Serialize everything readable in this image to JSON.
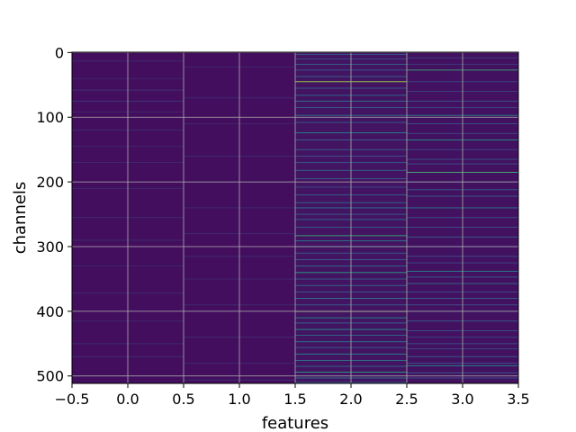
{
  "chart_data": {
    "type": "heatmap",
    "title": "",
    "xlabel": "features",
    "ylabel": "channels",
    "xlim": [
      -0.5,
      3.5
    ],
    "ylim": [
      511.5,
      -0.5
    ],
    "y_inverted": true,
    "n_columns": 4,
    "n_rows": 512,
    "colormap": "viridis",
    "grid": true,
    "grid_color": "#b0b0b0",
    "background_color": "#440154",
    "x_ticks": [
      -0.5,
      0.0,
      0.5,
      1.0,
      1.5,
      2.0,
      2.5,
      3.0,
      3.5
    ],
    "x_tick_labels": [
      "−0.5",
      "0.0",
      "0.5",
      "1.0",
      "1.5",
      "2.0",
      "2.5",
      "3.0",
      "3.5"
    ],
    "y_ticks": [
      0,
      100,
      200,
      300,
      400,
      500
    ],
    "y_tick_labels": [
      "0",
      "100",
      "200",
      "300",
      "400",
      "500"
    ],
    "columns": [
      {
        "feature": 0,
        "base_level": 0.04,
        "highlights": [
          [
            13,
            0.14
          ],
          [
            40,
            0.12
          ],
          [
            58,
            0.16
          ],
          [
            75,
            0.18
          ],
          [
            92,
            0.12
          ],
          [
            120,
            0.13
          ],
          [
            145,
            0.12
          ],
          [
            170,
            0.13
          ],
          [
            210,
            0.12
          ],
          [
            255,
            0.14
          ],
          [
            290,
            0.13
          ],
          [
            330,
            0.12
          ],
          [
            372,
            0.13
          ],
          [
            415,
            0.12
          ],
          [
            450,
            0.13
          ],
          [
            470,
            0.14
          ],
          [
            500,
            0.12
          ]
        ]
      },
      {
        "feature": 1,
        "base_level": 0.04,
        "highlights": [
          [
            22,
            0.12
          ],
          [
            70,
            0.14
          ],
          [
            110,
            0.12
          ],
          [
            160,
            0.13
          ],
          [
            200,
            0.12
          ],
          [
            240,
            0.13
          ],
          [
            280,
            0.14
          ],
          [
            315,
            0.13
          ],
          [
            350,
            0.12
          ],
          [
            390,
            0.13
          ],
          [
            440,
            0.14
          ],
          [
            480,
            0.13
          ],
          [
            506,
            0.14
          ]
        ]
      },
      {
        "feature": 2,
        "base_level": 0.06,
        "highlights": [
          [
            3,
            0.3
          ],
          [
            10,
            0.25
          ],
          [
            18,
            0.35
          ],
          [
            27,
            0.28
          ],
          [
            37,
            0.32
          ],
          [
            45,
            0.85
          ],
          [
            55,
            0.3
          ],
          [
            66,
            0.35
          ],
          [
            75,
            0.4
          ],
          [
            85,
            0.3
          ],
          [
            97,
            0.38
          ],
          [
            108,
            0.3
          ],
          [
            124,
            0.45
          ],
          [
            135,
            0.3
          ],
          [
            150,
            0.3
          ],
          [
            160,
            0.25
          ],
          [
            170,
            0.3
          ],
          [
            182,
            0.35
          ],
          [
            195,
            0.3
          ],
          [
            208,
            0.25
          ],
          [
            220,
            0.3
          ],
          [
            232,
            0.35
          ],
          [
            240,
            0.4
          ],
          [
            250,
            0.3
          ],
          [
            258,
            0.35
          ],
          [
            270,
            0.3
          ],
          [
            283,
            0.6
          ],
          [
            291,
            0.4
          ],
          [
            300,
            0.35
          ],
          [
            310,
            0.3
          ],
          [
            320,
            0.3
          ],
          [
            330,
            0.35
          ],
          [
            340,
            0.55
          ],
          [
            350,
            0.3
          ],
          [
            360,
            0.35
          ],
          [
            370,
            0.3
          ],
          [
            380,
            0.4
          ],
          [
            390,
            0.3
          ],
          [
            400,
            0.85
          ],
          [
            410,
            0.45
          ],
          [
            418,
            0.35
          ],
          [
            428,
            0.5
          ],
          [
            437,
            0.35
          ],
          [
            447,
            0.4
          ],
          [
            456,
            0.3
          ],
          [
            466,
            0.45
          ],
          [
            476,
            0.4
          ],
          [
            485,
            0.35
          ],
          [
            494,
            0.55
          ],
          [
            503,
            0.4
          ],
          [
            510,
            0.3
          ]
        ]
      },
      {
        "feature": 3,
        "base_level": 0.05,
        "highlights": [
          [
            8,
            0.2
          ],
          [
            18,
            0.18
          ],
          [
            27,
            0.6
          ],
          [
            45,
            0.22
          ],
          [
            60,
            0.2
          ],
          [
            75,
            0.25
          ],
          [
            85,
            0.22
          ],
          [
            97,
            0.45
          ],
          [
            110,
            0.25
          ],
          [
            125,
            0.22
          ],
          [
            135,
            0.5
          ],
          [
            150,
            0.22
          ],
          [
            165,
            0.25
          ],
          [
            172,
            0.25
          ],
          [
            185,
            0.65
          ],
          [
            200,
            0.25
          ],
          [
            212,
            0.3
          ],
          [
            222,
            0.3
          ],
          [
            240,
            0.4
          ],
          [
            255,
            0.25
          ],
          [
            270,
            0.25
          ],
          [
            285,
            0.3
          ],
          [
            300,
            0.25
          ],
          [
            315,
            0.25
          ],
          [
            325,
            0.22
          ],
          [
            338,
            0.45
          ],
          [
            347,
            0.3
          ],
          [
            357,
            0.35
          ],
          [
            370,
            0.25
          ],
          [
            380,
            0.3
          ],
          [
            390,
            0.25
          ],
          [
            400,
            0.3
          ],
          [
            415,
            0.3
          ],
          [
            430,
            0.25
          ],
          [
            440,
            0.22
          ],
          [
            450,
            0.25
          ],
          [
            458,
            0.22
          ],
          [
            470,
            0.3
          ],
          [
            480,
            0.25
          ],
          [
            484,
            0.5
          ],
          [
            495,
            0.3
          ],
          [
            503,
            0.25
          ]
        ]
      }
    ]
  }
}
